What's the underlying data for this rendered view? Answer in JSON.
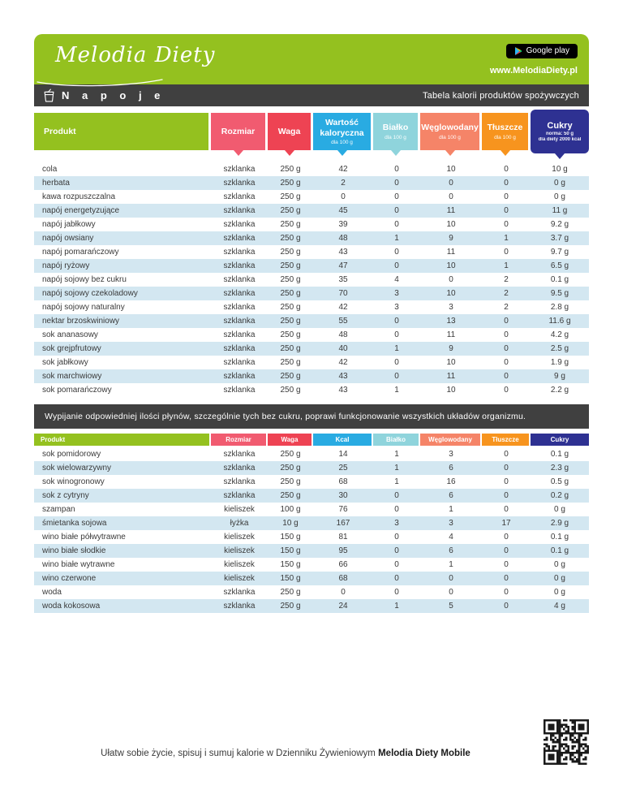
{
  "header": {
    "logo_text": "Melodia Diety",
    "store_badge": "Google play",
    "website": "www.MelodiaDiety.pl"
  },
  "section": {
    "title": "N a p o j e",
    "subtitle": "Tabela kalorii produktów spożywczych"
  },
  "colors": {
    "brand_green": "#94c11f",
    "dark_bar": "#404040",
    "row_stripe": "#d3e7f1"
  },
  "table1": {
    "columns": [
      {
        "key": "produkt",
        "label": "Produkt",
        "sub": [],
        "color": "#94c11f",
        "arrow": false
      },
      {
        "key": "rozmiar",
        "label": "Rozmiar",
        "sub": [],
        "color": "#f15b70",
        "arrow": true
      },
      {
        "key": "waga",
        "label": "Waga",
        "sub": [],
        "color": "#ee4353",
        "arrow": true
      },
      {
        "key": "wartosc-kaloryczna",
        "label": "Wartość kaloryczna",
        "sub": [
          "dla 100 g"
        ],
        "color": "#29abe2",
        "arrow": true
      },
      {
        "key": "bialko",
        "label": "Białko",
        "sub": [
          "dla 100 g"
        ],
        "color": "#8fd4dc",
        "arrow": true
      },
      {
        "key": "weglowodany",
        "label": "Węglowodany",
        "sub": [
          "dla 100 g"
        ],
        "color": "#f58468",
        "arrow": true
      },
      {
        "key": "tluszcze",
        "label": "Tłuszcze",
        "sub": [
          "dla 100 g"
        ],
        "color": "#f7941e",
        "arrow": true
      },
      {
        "key": "cukry",
        "label": "Cukry",
        "sub": [
          "norma: 50 g",
          "dla diety 2000 kcal"
        ],
        "color": "#2e3192",
        "arrow": true
      }
    ],
    "rows": [
      [
        "cola",
        "szklanka",
        "250 g",
        "42",
        "0",
        "10",
        "0",
        "10 g"
      ],
      [
        "herbata",
        "szklanka",
        "250 g",
        "2",
        "0",
        "0",
        "0",
        "0 g"
      ],
      [
        "kawa rozpuszczalna",
        "szklanka",
        "250 g",
        "0",
        "0",
        "0",
        "0",
        "0 g"
      ],
      [
        "napój energetyzujące",
        "szklanka",
        "250 g",
        "45",
        "0",
        "11",
        "0",
        "11 g"
      ],
      [
        "napój jabłkowy",
        "szklanka",
        "250 g",
        "39",
        "0",
        "10",
        "0",
        "9.2 g"
      ],
      [
        "napój owsiany",
        "szklanka",
        "250 g",
        "48",
        "1",
        "9",
        "1",
        "3.7 g"
      ],
      [
        "napój pomarańczowy",
        "szklanka",
        "250 g",
        "43",
        "0",
        "11",
        "0",
        "9.7 g"
      ],
      [
        "napój ryżowy",
        "szklanka",
        "250 g",
        "47",
        "0",
        "10",
        "1",
        "6.5 g"
      ],
      [
        "napój sojowy bez cukru",
        "szklanka",
        "250 g",
        "35",
        "4",
        "0",
        "2",
        "0.1 g"
      ],
      [
        "napój sojowy czekoladowy",
        "szklanka",
        "250 g",
        "70",
        "3",
        "10",
        "2",
        "9.5 g"
      ],
      [
        "napój sojowy naturalny",
        "szklanka",
        "250 g",
        "42",
        "3",
        "3",
        "2",
        "2.8 g"
      ],
      [
        "nektar brzoskwiniowy",
        "szklanka",
        "250 g",
        "55",
        "0",
        "13",
        "0",
        "11.6 g"
      ],
      [
        "sok ananasowy",
        "szklanka",
        "250 g",
        "48",
        "0",
        "11",
        "0",
        "4.2 g"
      ],
      [
        "sok grejpfrutowy",
        "szklanka",
        "250 g",
        "40",
        "1",
        "9",
        "0",
        "2.5 g"
      ],
      [
        "sok jabłkowy",
        "szklanka",
        "250 g",
        "42",
        "0",
        "10",
        "0",
        "1.9 g"
      ],
      [
        "sok marchwiowy",
        "szklanka",
        "250 g",
        "43",
        "0",
        "11",
        "0",
        "9 g"
      ],
      [
        "sok pomarańczowy",
        "szklanka",
        "250 g",
        "43",
        "1",
        "10",
        "0",
        "2.2 g"
      ]
    ]
  },
  "banner": "Wypijanie odpowiedniej ilości płynów, szczególnie tych bez cukru, poprawi funkcjonowanie wszystkich układów organizmu.",
  "table2": {
    "columns": [
      {
        "key": "produkt",
        "label": "Produkt",
        "color": "#94c11f"
      },
      {
        "key": "rozmiar",
        "label": "Rozmiar",
        "color": "#f15b70"
      },
      {
        "key": "waga",
        "label": "Waga",
        "color": "#ee4353"
      },
      {
        "key": "kcal",
        "label": "Kcal",
        "color": "#29abe2"
      },
      {
        "key": "bialko",
        "label": "Białko",
        "color": "#8fd4dc"
      },
      {
        "key": "weglowodany",
        "label": "Węglowodany",
        "color": "#f58468"
      },
      {
        "key": "tluszcze",
        "label": "Tłuszcze",
        "color": "#f7941e"
      },
      {
        "key": "cukry",
        "label": "Cukry",
        "color": "#2e3192"
      }
    ],
    "rows": [
      [
        "sok pomidorowy",
        "szklanka",
        "250 g",
        "14",
        "1",
        "3",
        "0",
        "0.1 g"
      ],
      [
        "sok wielowarzywny",
        "szklanka",
        "250 g",
        "25",
        "1",
        "6",
        "0",
        "2.3 g"
      ],
      [
        "sok winogronowy",
        "szklanka",
        "250 g",
        "68",
        "1",
        "16",
        "0",
        "0.5 g"
      ],
      [
        "sok z cytryny",
        "szklanka",
        "250 g",
        "30",
        "0",
        "6",
        "0",
        "0.2 g"
      ],
      [
        "szampan",
        "kieliszek",
        "100 g",
        "76",
        "0",
        "1",
        "0",
        "0 g"
      ],
      [
        "śmietanka sojowa",
        "łyżka",
        "10 g",
        "167",
        "3",
        "3",
        "17",
        "2.9 g"
      ],
      [
        "wino białe półwytrawne",
        "kieliszek",
        "150 g",
        "81",
        "0",
        "4",
        "0",
        "0.1 g"
      ],
      [
        "wino białe słodkie",
        "kieliszek",
        "150 g",
        "95",
        "0",
        "6",
        "0",
        "0.1 g"
      ],
      [
        "wino białe wytrawne",
        "kieliszek",
        "150 g",
        "66",
        "0",
        "1",
        "0",
        "0 g"
      ],
      [
        "wino czerwone",
        "kieliszek",
        "150 g",
        "68",
        "0",
        "0",
        "0",
        "0 g"
      ],
      [
        "woda",
        "szklanka",
        "250 g",
        "0",
        "0",
        "0",
        "0",
        "0 g"
      ],
      [
        "woda kokosowa",
        "szklanka",
        "250 g",
        "24",
        "1",
        "5",
        "0",
        "4 g"
      ]
    ]
  },
  "footer": {
    "text": "Ułatw sobie życie, spisuj i sumuj kalorie w Dzienniku Żywieniowym",
    "text_bold": "Melodia Diety Mobile"
  }
}
